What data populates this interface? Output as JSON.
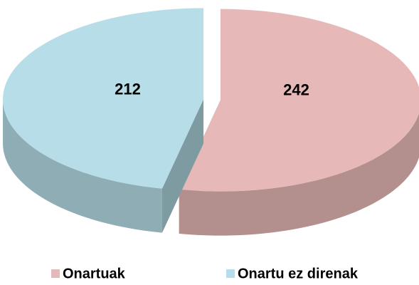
{
  "chart_data": {
    "type": "pie",
    "categories": [
      "Onartuak",
      "Onartu ez direnak"
    ],
    "values": [
      242,
      212
    ],
    "colors": [
      "#e6b8b7",
      "#b7dee8"
    ],
    "legend": "bottom"
  }
}
